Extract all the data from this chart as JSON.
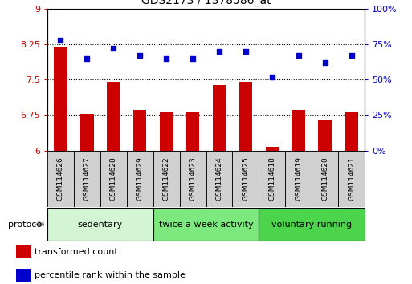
{
  "title": "GDS2173 / 1378586_at",
  "categories": [
    "GSM114626",
    "GSM114627",
    "GSM114628",
    "GSM114629",
    "GSM114622",
    "GSM114623",
    "GSM114624",
    "GSM114625",
    "GSM114618",
    "GSM114619",
    "GSM114620",
    "GSM114621"
  ],
  "bar_values": [
    8.2,
    6.78,
    7.45,
    6.85,
    6.8,
    6.8,
    7.38,
    7.45,
    6.08,
    6.85,
    6.65,
    6.82
  ],
  "bar_bottom": 6.0,
  "dot_values": [
    78,
    65,
    72,
    67,
    65,
    65,
    70,
    70,
    52,
    67,
    62,
    67
  ],
  "bar_color": "#cc0000",
  "dot_color": "#0000cc",
  "ylim_left": [
    6.0,
    9.0
  ],
  "ylim_right": [
    0,
    100
  ],
  "yticks_left": [
    6.0,
    6.75,
    7.5,
    8.25,
    9.0
  ],
  "ytick_labels_left": [
    "6",
    "6.75",
    "7.5",
    "8.25",
    "9"
  ],
  "yticks_right": [
    0,
    25,
    50,
    75,
    100
  ],
  "ytick_labels_right": [
    "0%",
    "25%",
    "50%",
    "75%",
    "100%"
  ],
  "hlines": [
    6.75,
    7.5,
    8.25
  ],
  "groups": [
    {
      "label": "sedentary",
      "start": 0,
      "end": 4,
      "color": "#d4f5d4"
    },
    {
      "label": "twice a week activity",
      "start": 4,
      "end": 8,
      "color": "#7de87d"
    },
    {
      "label": "voluntary running",
      "start": 8,
      "end": 12,
      "color": "#4cd44c"
    }
  ],
  "protocol_label": "protocol",
  "legend_items": [
    {
      "label": "transformed count",
      "color": "#cc0000"
    },
    {
      "label": "percentile rank within the sample",
      "color": "#0000cc"
    }
  ],
  "bar_width": 0.5,
  "figsize": [
    5.13,
    3.54
  ],
  "dpi": 100
}
